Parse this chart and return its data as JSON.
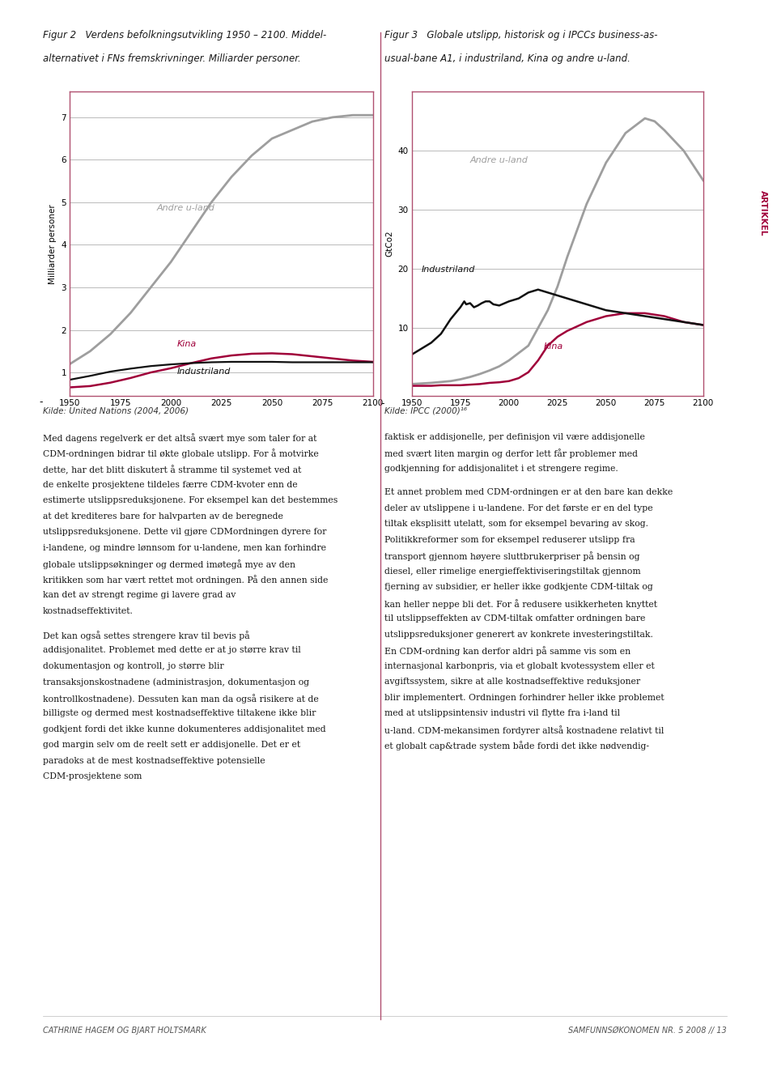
{
  "fig2_title_line1": "Figur 2   Verdens befolkningsutvikling 1950 – 2100. Middel-",
  "fig2_title_line2": "alternativet i FNs fremskrivninger. Milliarder personer.",
  "fig3_title_line1": "Figur 3   Globale utslipp, historisk og i IPCCs business-as-",
  "fig3_title_line2": "usual-bane A1, i industriland, Kina og andre u-land.",
  "fig2_ylabel": "Milliarder personer",
  "fig3_ylabel": "GtCo2",
  "source1": "Kilde: United Nations (2004, 2006)",
  "source2": "Kilde: IPCC (2000)¹⁶",
  "xlabel_ticks": [
    1950,
    1975,
    2000,
    2025,
    2050,
    2075,
    2100
  ],
  "fig2_yticks": [
    1,
    2,
    3,
    4,
    5,
    6,
    7
  ],
  "fig2_ylim": [
    0.45,
    7.6
  ],
  "fig3_yticks": [
    10,
    20,
    30,
    40
  ],
  "fig3_ylim": [
    -1.5,
    50
  ],
  "color_andre": "#9e9e9e",
  "color_kina": "#a0003a",
  "color_industri": "#111111",
  "border_color": "#b05070",
  "fig2_andre_x": [
    1950,
    1960,
    1970,
    1980,
    1990,
    2000,
    2010,
    2020,
    2030,
    2040,
    2050,
    2060,
    2070,
    2080,
    2090,
    2100
  ],
  "fig2_andre_y": [
    1.2,
    1.5,
    1.9,
    2.4,
    3.0,
    3.6,
    4.3,
    5.0,
    5.6,
    6.1,
    6.5,
    6.7,
    6.9,
    7.0,
    7.05,
    7.05
  ],
  "fig2_kina_x": [
    1950,
    1960,
    1970,
    1980,
    1990,
    2000,
    2010,
    2020,
    2030,
    2040,
    2050,
    2060,
    2070,
    2080,
    2090,
    2100
  ],
  "fig2_kina_y": [
    0.65,
    0.68,
    0.76,
    0.87,
    1.0,
    1.1,
    1.22,
    1.33,
    1.4,
    1.44,
    1.45,
    1.43,
    1.38,
    1.33,
    1.28,
    1.25
  ],
  "fig2_industri_x": [
    1950,
    1960,
    1970,
    1980,
    1990,
    2000,
    2010,
    2020,
    2030,
    2040,
    2050,
    2060,
    2070,
    2080,
    2090,
    2100
  ],
  "fig2_industri_y": [
    0.83,
    0.92,
    1.02,
    1.09,
    1.15,
    1.19,
    1.22,
    1.24,
    1.25,
    1.25,
    1.25,
    1.24,
    1.24,
    1.24,
    1.24,
    1.24
  ],
  "fig3_andre_x": [
    1950,
    1960,
    1970,
    1975,
    1980,
    1985,
    1990,
    1995,
    2000,
    2010,
    2020,
    2025,
    2030,
    2040,
    2050,
    2060,
    2070,
    2075,
    2080,
    2090,
    2100
  ],
  "fig3_andre_y": [
    0.5,
    0.7,
    1.0,
    1.3,
    1.7,
    2.2,
    2.8,
    3.5,
    4.5,
    7.0,
    13.0,
    17.0,
    22.0,
    31.0,
    38.0,
    43.0,
    45.5,
    45.0,
    43.5,
    40.0,
    35.0
  ],
  "fig3_kina_x": [
    1950,
    1955,
    1960,
    1965,
    1970,
    1975,
    1980,
    1985,
    1990,
    1995,
    2000,
    2005,
    2010,
    2015,
    2020,
    2025,
    2030,
    2040,
    2050,
    2060,
    2070,
    2080,
    2090,
    2100
  ],
  "fig3_kina_y": [
    0.2,
    0.2,
    0.2,
    0.3,
    0.3,
    0.3,
    0.4,
    0.5,
    0.7,
    0.8,
    1.0,
    1.5,
    2.5,
    4.5,
    7.0,
    8.5,
    9.5,
    11.0,
    12.0,
    12.5,
    12.5,
    12.0,
    11.0,
    10.5
  ],
  "fig3_industri_x": [
    1950,
    1955,
    1960,
    1965,
    1970,
    1975,
    1976,
    1977,
    1978,
    1980,
    1982,
    1984,
    1986,
    1988,
    1990,
    1992,
    1995,
    2000,
    2005,
    2010,
    2015,
    2020,
    2025,
    2030,
    2040,
    2050,
    2060,
    2070,
    2080,
    2090,
    2100
  ],
  "fig3_industri_y": [
    5.5,
    6.5,
    7.5,
    9.0,
    11.5,
    13.5,
    14.0,
    14.5,
    14.0,
    14.2,
    13.5,
    13.8,
    14.2,
    14.5,
    14.5,
    14.0,
    13.8,
    14.5,
    15.0,
    16.0,
    16.5,
    16.0,
    15.5,
    15.0,
    14.0,
    13.0,
    12.5,
    12.0,
    11.5,
    11.0,
    10.5
  ],
  "artikkel_color": "#a0003a",
  "background_color": "#ffffff",
  "plot_bg": "#ffffff",
  "grid_color": "#888888",
  "fig2_label_andre": "Andre u-land",
  "fig2_label_kina": "Kina",
  "fig2_label_industri": "Industriland",
  "fig3_label_andre": "Andre u-land",
  "fig3_label_kina": "Kina",
  "fig3_label_industri": "Industriland",
  "body_left_col": "Med dagens regelverk er det altså svært mye som taler for at CDM-ordningen bidrar til økte globale utslipp. For å motvirke dette, har det blitt diskutert å stramme til systemet ved at de enkelte prosjektene tildeles færre CDM-kvoter enn de estimerte utslippsreduksjonene. For eksempel kan det bestemmes at det krediteres bare for halvparten av de beregnede utslippsreduksjonene. Dette vil gjøre CDMordningen dyrere for i-landene, og mindre lønnsom for u-landene, men kan forhindre globale utslippsøkninger og dermed imøtegå mye av den kritikken som har vært rettet mot ordningen. På den annen side kan det av strengt regime gi lavere grad av kostnadseffektivitet.\n\nDet kan også settes strengere krav til bevis på addisjonalitet. Problemet med dette er at jo større krav til dokumentasjon og kontroll, jo større blir transaksjonskostnadene (administrasjon, dokumentasjon og kontrollkostnadene). Dessuten kan man da også risikere at de billigste og dermed mest kostnadseffektive tiltakene ikke blir godkjent fordi det ikke kunne dokumenteres addisjonalitet med god margin selv om de reelt sett er addisjonelle. Det er et paradoks at de mest kostnadseffektive potensielle CDM-prosjektene som",
  "body_right_col": "faktisk er addisjonelle, per definisjon vil være addisjonelle med svært liten margin og derfor lett får problemer med godkjenning for addisjonalitet i et strengere regime.\n\nEt annet problem med CDM-ordningen er at den bare kan dekke deler av utslippene i u-landene. For det første er en del type tiltak eksplisitt utelatt, som for eksempel bevaring av skog. Politikkreformer som for eksempel reduserer utslipp fra transport gjennom høyere sluttbrukerpriser på bensin og diesel, eller rimelige energieffektiviseringstiltak gjennom fjerning av subsidier, er heller ikke godkjente CDM-tiltak og kan heller neppe bli det. For å redusere usikkerheten knyttet til utslippseffekten av CDM-tiltak omfatter ordningen bare utslippsreduksjoner generert av konkrete investeringstiltak. En CDM-ordning kan derfor aldri på samme vis som en internasjonal karbonpris, via et globalt kvotessystem eller et avgiftssystem, sikre at alle kostnadseffektive reduksjoner blir implementert. Ordningen forhindrer heller ikke problemet med at utslippsintensiv industri vil flytte fra i-land til u-land. CDM-mekansimen fordyrer altså kostnadene relativt til et globalt cap&trade system både fordi det ikke nødvendig-",
  "footer_left": "CATHRINE HAGEM OG BJART HOLTSMARK",
  "footer_right": "SAMFUNNSØKONOMEN NR. 5 2008 // 13"
}
